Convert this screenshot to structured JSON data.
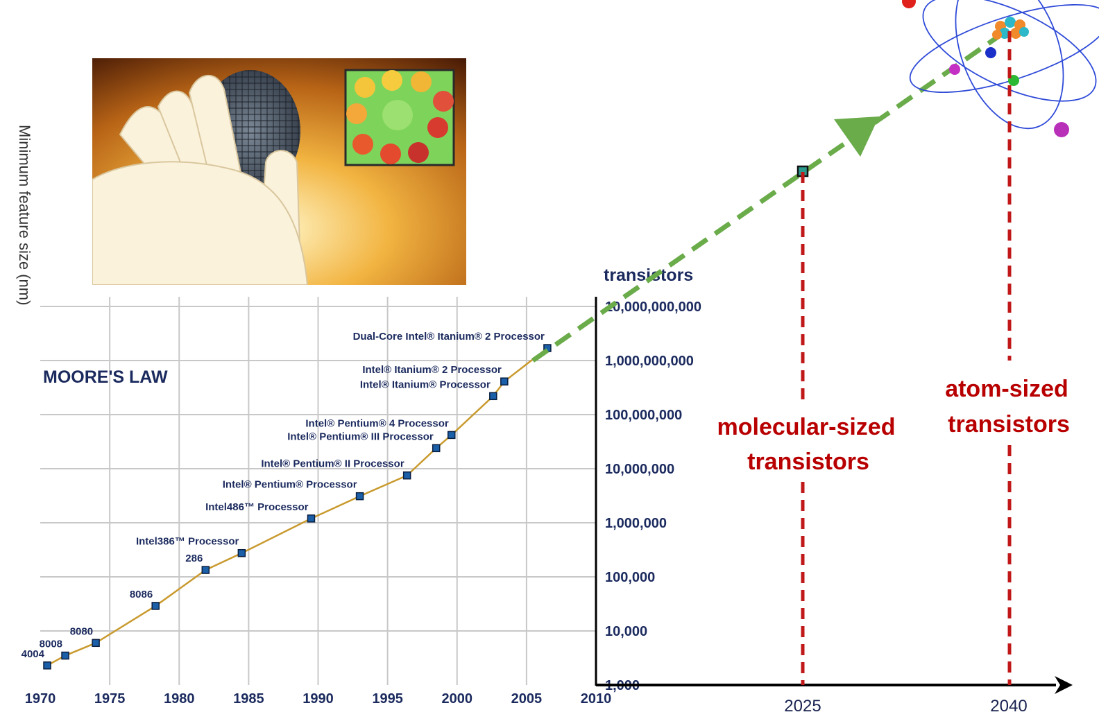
{
  "y_axis_title": "Minimum feature size (nm)",
  "moores_law_title": "MOORE'S LAW",
  "transistors_title": "transistors",
  "colors": {
    "grid": "#c8c8c8",
    "trend_line": "#c99a2e",
    "marker": "#1a5fa8",
    "label_text": "#1b2a5e",
    "projection_arrow": "#6aab4a",
    "future_line": "#c01818",
    "future_text": "#b80000",
    "axis": "#000000"
  },
  "chart_data": {
    "type": "line",
    "title": "MOORE'S LAW",
    "ylabel": "transistors",
    "yscale": "log",
    "xlim": [
      1970,
      2010
    ],
    "ylim": [
      1000,
      10000000000
    ],
    "x_ticks": [
      "1970",
      "1975",
      "1980",
      "1985",
      "1990",
      "1995",
      "2000",
      "2005",
      "2010"
    ],
    "y_ticks": [
      {
        "value": 1000,
        "label": "1,000"
      },
      {
        "value": 10000,
        "label": "10,000"
      },
      {
        "value": 100000,
        "label": "100,000"
      },
      {
        "value": 1000000,
        "label": "1,000,000"
      },
      {
        "value": 10000000,
        "label": "10,000,000"
      },
      {
        "value": 100000000,
        "label": "100,000,000"
      },
      {
        "value": 1000000000,
        "label": "1,000,000,000"
      },
      {
        "value": 10000000000,
        "label": "10,000,000,000"
      }
    ],
    "grid": true,
    "points": [
      {
        "label": "4004",
        "x": 1970.5,
        "y": 2300
      },
      {
        "label": "8008",
        "x": 1971.8,
        "y": 3500
      },
      {
        "label": "8080",
        "x": 1974,
        "y": 6000
      },
      {
        "label": "8086",
        "x": 1978.3,
        "y": 29000
      },
      {
        "label": "286",
        "x": 1981.9,
        "y": 134000
      },
      {
        "label": "Intel386™ Processor",
        "x": 1984.5,
        "y": 275000
      },
      {
        "label": "Intel486™ Processor",
        "x": 1989.5,
        "y": 1200000
      },
      {
        "label": "Intel® Pentium® Processor",
        "x": 1993,
        "y": 3100000
      },
      {
        "label": "Intel® Pentium® II Processor",
        "x": 1996.4,
        "y": 7500000
      },
      {
        "label": "Intel® Pentium® III Processor",
        "x": 1998.5,
        "y": 24000000
      },
      {
        "label": "Intel® Pentium® 4 Processor",
        "x": 1999.6,
        "y": 42000000
      },
      {
        "label": "Intel® Itanium® Processor",
        "x": 2002.6,
        "y": 220000000
      },
      {
        "label": "Intel® Itanium® 2 Processor",
        "x": 2003.4,
        "y": 410000000
      },
      {
        "label": "Dual-Core Intel® Itanium® 2 Processor",
        "x": 2006.5,
        "y": 1700000000
      }
    ],
    "future": {
      "x_labels": [
        {
          "year": "2025",
          "text_lines": [
            "molecular-sized",
            "transistors"
          ]
        },
        {
          "year": "2040",
          "text_lines": [
            "atom-sized",
            "transistors"
          ]
        }
      ]
    }
  }
}
